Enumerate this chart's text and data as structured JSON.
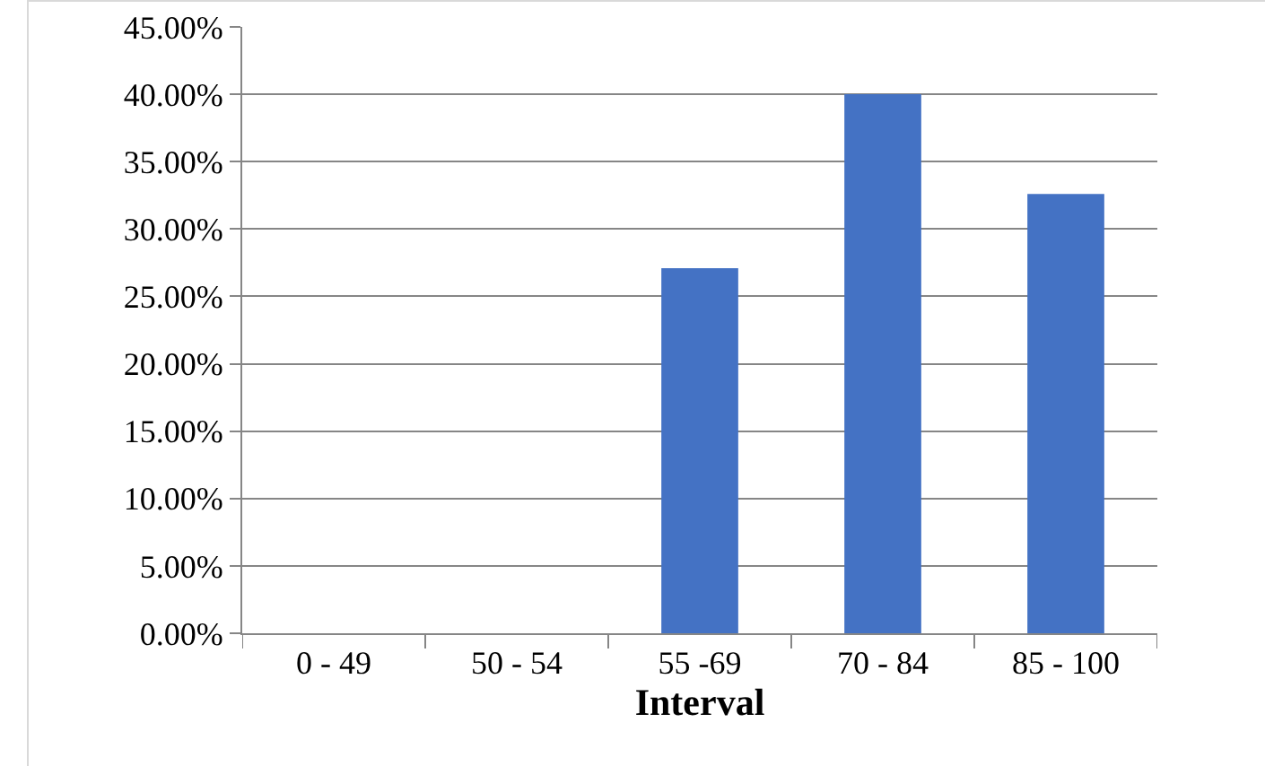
{
  "chart_data": {
    "type": "bar",
    "xlabel": "Interval",
    "categories": [
      "0 - 49",
      "50 - 54",
      "55 -69",
      "70 - 84",
      "85 - 100"
    ],
    "values": [
      0,
      0,
      27.1,
      40.0,
      32.6
    ],
    "color": "#4472c4",
    "ylim": [
      0,
      45
    ],
    "yticks": [
      {
        "value": 0,
        "label": "0.00%"
      },
      {
        "value": 5,
        "label": "5.00%"
      },
      {
        "value": 10,
        "label": "10.00%"
      },
      {
        "value": 15,
        "label": "15.00%"
      },
      {
        "value": 20,
        "label": "20.00%"
      },
      {
        "value": 25,
        "label": "25.00%"
      },
      {
        "value": 30,
        "label": "30.00%"
      },
      {
        "value": 35,
        "label": "35.00%"
      },
      {
        "value": 40,
        "label": "40.00%"
      },
      {
        "value": 45,
        "label": "45.00%"
      }
    ],
    "grid": "y"
  }
}
